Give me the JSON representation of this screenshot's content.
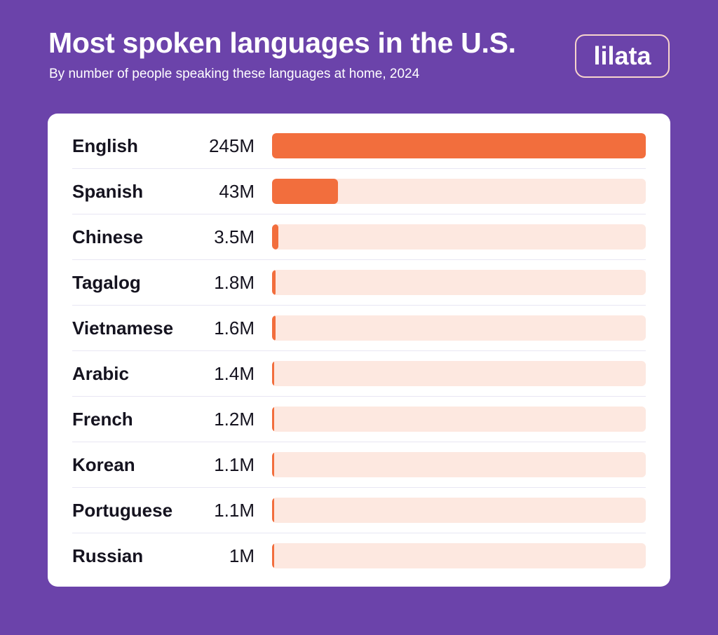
{
  "header": {
    "title": "Most spoken languages in the U.S.",
    "subtitle": "By number of people speaking these languages at home, 2024",
    "logo": "lilata"
  },
  "colors": {
    "background": "#6B43AA",
    "card": "#FFFFFF",
    "bar_fill": "#F26E3D",
    "bar_track": "#FDE8E0",
    "logo_border": "#F8D5CC",
    "text_dark": "#15131F"
  },
  "rows": [
    {
      "label": "English",
      "value_label": "245M",
      "value": 245
    },
    {
      "label": "Spanish",
      "value_label": "43M",
      "value": 43
    },
    {
      "label": "Chinese",
      "value_label": "3.5M",
      "value": 3.5
    },
    {
      "label": "Tagalog",
      "value_label": "1.8M",
      "value": 1.8
    },
    {
      "label": "Vietnamese",
      "value_label": "1.6M",
      "value": 1.6
    },
    {
      "label": "Arabic",
      "value_label": "1.4M",
      "value": 1.4
    },
    {
      "label": "French",
      "value_label": "1.2M",
      "value": 1.2
    },
    {
      "label": "Korean",
      "value_label": "1.1M",
      "value": 1.1
    },
    {
      "label": "Portuguese",
      "value_label": "1.1M",
      "value": 1.1
    },
    {
      "label": "Russian",
      "value_label": "1M",
      "value": 1
    }
  ],
  "chart_data": {
    "type": "bar",
    "orientation": "horizontal",
    "title": "Most spoken languages in the U.S.",
    "subtitle": "By number of people speaking these languages at home, 2024",
    "categories": [
      "English",
      "Spanish",
      "Chinese",
      "Tagalog",
      "Vietnamese",
      "Arabic",
      "French",
      "Korean",
      "Portuguese",
      "Russian"
    ],
    "values": [
      245,
      43,
      3.5,
      1.8,
      1.6,
      1.4,
      1.2,
      1.1,
      1.1,
      1
    ],
    "value_labels": [
      "245M",
      "43M",
      "3.5M",
      "1.8M",
      "1.6M",
      "1.4M",
      "1.2M",
      "1.1M",
      "1.1M",
      "1M"
    ],
    "unit": "millions of speakers",
    "xlabel": "",
    "ylabel": "",
    "xlim": [
      0,
      245
    ],
    "grid": false,
    "legend": "none"
  }
}
